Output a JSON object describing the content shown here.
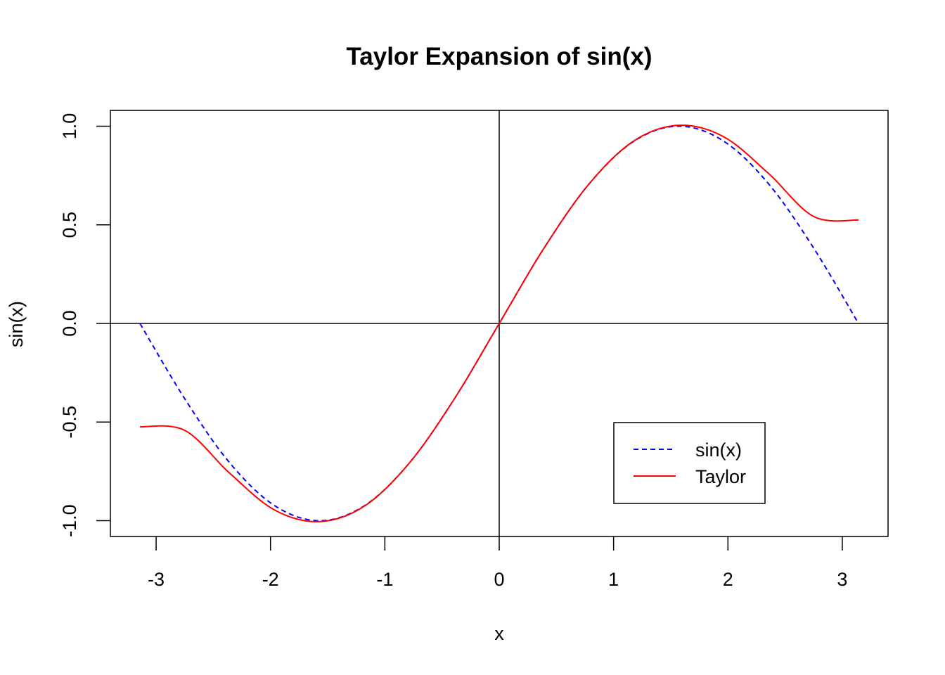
{
  "chart_data": {
    "type": "line",
    "title": "Taylor Expansion of sin(x)",
    "xlabel": "x",
    "ylabel": "sin(x)",
    "xlim": [
      -3.4,
      3.4
    ],
    "ylim": [
      -1.08,
      1.08
    ],
    "x_ticks": [
      -3,
      -2,
      -1,
      0,
      1,
      2,
      3
    ],
    "x_tick_labels": [
      "-3",
      "-2",
      "-1",
      "0",
      "1",
      "2",
      "3"
    ],
    "y_ticks": [
      -1.0,
      -0.5,
      0.0,
      0.5,
      1.0
    ],
    "y_tick_labels": [
      "-1.0",
      "-0.5",
      "0.0",
      "0.5",
      "1.0"
    ],
    "reference_lines": {
      "horizontal": 0,
      "vertical": 0
    },
    "legend_position": "bottom-right",
    "x_range": [
      -3.14159,
      3.14159
    ],
    "series": [
      {
        "name": "sin(x)",
        "color": "#0000ff",
        "style": "dashed",
        "x": [
          -3.14159,
          -2.74889,
          -2.35619,
          -1.9635,
          -1.5708,
          -1.1781,
          -0.7854,
          -0.3927,
          0,
          0.3927,
          0.7854,
          1.1781,
          1.5708,
          1.9635,
          2.35619,
          2.74889,
          3.14159
        ],
        "y": [
          0.0,
          -0.3827,
          -0.7071,
          -0.9239,
          -1.0,
          -0.9239,
          -0.7071,
          -0.3827,
          0.0,
          0.3827,
          0.7071,
          0.9239,
          1.0,
          0.9239,
          0.7071,
          0.3827,
          0.0
        ]
      },
      {
        "name": "Taylor",
        "color": "#ff0000",
        "style": "solid",
        "x": [
          -3.14159,
          -2.74889,
          -2.35619,
          -1.9635,
          -1.5708,
          -1.1781,
          -0.7854,
          -0.3927,
          0,
          0.3927,
          0.7854,
          1.1781,
          1.5708,
          1.9635,
          2.35619,
          2.74889,
          3.14159
        ],
        "y": [
          -0.524,
          -0.5423,
          -0.7596,
          -0.9459,
          -1.0045,
          -0.9256,
          -0.7071,
          -0.3827,
          0.0,
          0.3827,
          0.7071,
          0.9256,
          1.0045,
          0.9459,
          0.7596,
          0.5423,
          0.524
        ]
      }
    ]
  }
}
